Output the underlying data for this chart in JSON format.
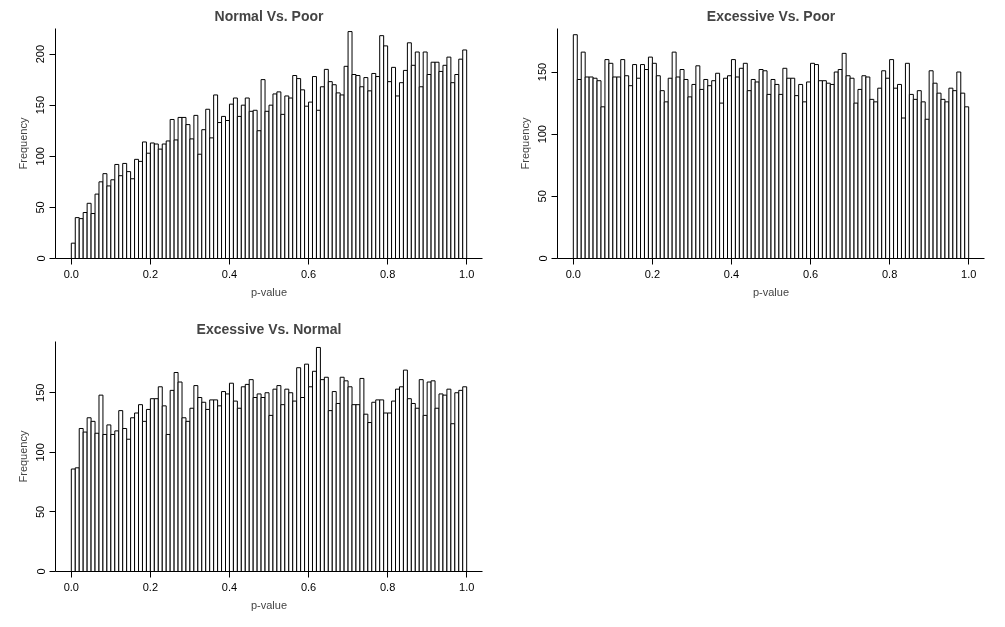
{
  "chart_data": [
    {
      "type": "histogram",
      "title": "Normal Vs. Poor",
      "xlabel": "p-value",
      "ylabel": "Frequency",
      "bins": [
        0,
        0.01,
        0.02,
        0.03,
        0.04,
        0.05,
        0.06,
        0.07,
        0.08,
        0.09,
        0.1,
        0.11,
        0.12,
        0.13,
        0.14,
        0.15,
        0.16,
        0.17,
        0.18,
        0.19,
        0.2,
        0.21,
        0.22,
        0.23,
        0.24,
        0.25,
        0.26,
        0.27,
        0.28,
        0.29,
        0.3,
        0.31,
        0.32,
        0.33,
        0.34,
        0.35,
        0.36,
        0.37,
        0.38,
        0.39,
        0.4,
        0.41,
        0.42,
        0.43,
        0.44,
        0.45,
        0.46,
        0.47,
        0.48,
        0.49,
        0.5,
        0.51,
        0.52,
        0.53,
        0.54,
        0.55,
        0.56,
        0.57,
        0.58,
        0.59,
        0.6,
        0.61,
        0.62,
        0.63,
        0.64,
        0.65,
        0.66,
        0.67,
        0.68,
        0.69,
        0.7,
        0.71,
        0.72,
        0.73,
        0.74,
        0.75,
        0.76,
        0.77,
        0.78,
        0.79,
        0.8,
        0.81,
        0.82,
        0.83,
        0.84,
        0.85,
        0.86,
        0.87,
        0.88,
        0.89,
        0.9,
        0.91,
        0.92,
        0.93,
        0.94,
        0.95,
        0.96,
        0.97,
        0.98,
        0.99,
        1
      ],
      "values": [
        15,
        40,
        39,
        45,
        54,
        44,
        63,
        75,
        83,
        71,
        77,
        92,
        81,
        93,
        85,
        78,
        97,
        95,
        114,
        103,
        113,
        112,
        107,
        112,
        115,
        136,
        116,
        138,
        138,
        131,
        117,
        140,
        102,
        126,
        146,
        118,
        160,
        133,
        139,
        135,
        151,
        157,
        139,
        150,
        157,
        144,
        145,
        125,
        175,
        144,
        150,
        161,
        163,
        141,
        159,
        157,
        179,
        176,
        165,
        149,
        153,
        178,
        145,
        168,
        185,
        173,
        170,
        162,
        160,
        188,
        222,
        180,
        179,
        168,
        177,
        164,
        181,
        178,
        218,
        208,
        173,
        187,
        159,
        172,
        184,
        211,
        189,
        202,
        168,
        202,
        180,
        192,
        192,
        183,
        189,
        197,
        172,
        180,
        195,
        204
      ],
      "color": "#ffffff",
      "xlim": [
        -0.04,
        1.04
      ],
      "ylim": [
        0,
        225
      ],
      "xticks": [
        {
          "value": 0,
          "label": "0.0"
        },
        {
          "value": 0.2,
          "label": "0.2"
        },
        {
          "value": 0.4,
          "label": "0.4"
        },
        {
          "value": 0.6,
          "label": "0.6"
        },
        {
          "value": 0.8,
          "label": "0.8"
        },
        {
          "value": 1,
          "label": "1.0"
        }
      ],
      "yticks": [
        0,
        50,
        100,
        150,
        200
      ]
    },
    {
      "type": "histogram",
      "title": "Excessive Vs. Poor",
      "xlabel": "p-value",
      "ylabel": "Frequency",
      "bins": [
        0,
        0.01,
        0.02,
        0.03,
        0.04,
        0.05,
        0.06,
        0.07,
        0.08,
        0.09,
        0.1,
        0.11,
        0.12,
        0.13,
        0.14,
        0.15,
        0.16,
        0.17,
        0.18,
        0.19,
        0.2,
        0.21,
        0.22,
        0.23,
        0.24,
        0.25,
        0.26,
        0.27,
        0.28,
        0.29,
        0.3,
        0.31,
        0.32,
        0.33,
        0.34,
        0.35,
        0.36,
        0.37,
        0.38,
        0.39,
        0.4,
        0.41,
        0.42,
        0.43,
        0.44,
        0.45,
        0.46,
        0.47,
        0.48,
        0.49,
        0.5,
        0.51,
        0.52,
        0.53,
        0.54,
        0.55,
        0.56,
        0.57,
        0.58,
        0.59,
        0.6,
        0.61,
        0.62,
        0.63,
        0.64,
        0.65,
        0.66,
        0.67,
        0.68,
        0.69,
        0.7,
        0.71,
        0.72,
        0.73,
        0.74,
        0.75,
        0.76,
        0.77,
        0.78,
        0.79,
        0.8,
        0.81,
        0.82,
        0.83,
        0.84,
        0.85,
        0.86,
        0.87,
        0.88,
        0.89,
        0.9,
        0.91,
        0.92,
        0.93,
        0.94,
        0.95,
        0.96,
        0.97,
        0.98,
        0.99,
        1
      ],
      "values": [
        180,
        144,
        166,
        146,
        146,
        145,
        143,
        122,
        160,
        157,
        146,
        146,
        160,
        147,
        139,
        156,
        145,
        156,
        152,
        162,
        157,
        147,
        135,
        126,
        145,
        166,
        146,
        152,
        144,
        130,
        140,
        155,
        136,
        144,
        139,
        143,
        149,
        125,
        145,
        147,
        160,
        146,
        153,
        157,
        135,
        144,
        142,
        152,
        151,
        132,
        144,
        140,
        132,
        153,
        145,
        145,
        131,
        140,
        126,
        142,
        157,
        156,
        143,
        143,
        141,
        140,
        150,
        152,
        165,
        147,
        145,
        125,
        136,
        147,
        146,
        128,
        126,
        137,
        151,
        145,
        160,
        137,
        140,
        113,
        157,
        132,
        128,
        135,
        126,
        112,
        151,
        141,
        133,
        128,
        126,
        137,
        135,
        150,
        133,
        122
      ],
      "color": "#ffffff",
      "xlim": [
        -0.04,
        1.04
      ],
      "ylim": [
        0,
        185
      ],
      "xticks": [
        {
          "value": 0,
          "label": "0.0"
        },
        {
          "value": 0.2,
          "label": "0.2"
        },
        {
          "value": 0.4,
          "label": "0.4"
        },
        {
          "value": 0.6,
          "label": "0.6"
        },
        {
          "value": 0.8,
          "label": "0.8"
        },
        {
          "value": 1,
          "label": "1.0"
        }
      ],
      "yticks": [
        0,
        50,
        100,
        150
      ]
    },
    {
      "type": "histogram",
      "title": "Excessive Vs. Normal",
      "xlabel": "p-value",
      "ylabel": "Frequency",
      "bins": [
        0,
        0.01,
        0.02,
        0.03,
        0.04,
        0.05,
        0.06,
        0.07,
        0.08,
        0.09,
        0.1,
        0.11,
        0.12,
        0.13,
        0.14,
        0.15,
        0.16,
        0.17,
        0.18,
        0.19,
        0.2,
        0.21,
        0.22,
        0.23,
        0.24,
        0.25,
        0.26,
        0.27,
        0.28,
        0.29,
        0.3,
        0.31,
        0.32,
        0.33,
        0.34,
        0.35,
        0.36,
        0.37,
        0.38,
        0.39,
        0.4,
        0.41,
        0.42,
        0.43,
        0.44,
        0.45,
        0.46,
        0.47,
        0.48,
        0.49,
        0.5,
        0.51,
        0.52,
        0.53,
        0.54,
        0.55,
        0.56,
        0.57,
        0.58,
        0.59,
        0.6,
        0.61,
        0.62,
        0.63,
        0.64,
        0.65,
        0.66,
        0.67,
        0.68,
        0.69,
        0.7,
        0.71,
        0.72,
        0.73,
        0.74,
        0.75,
        0.76,
        0.77,
        0.78,
        0.79,
        0.8,
        0.81,
        0.82,
        0.83,
        0.84,
        0.85,
        0.86,
        0.87,
        0.88,
        0.89,
        0.9,
        0.91,
        0.92,
        0.93,
        0.94,
        0.95,
        0.96,
        0.97,
        0.98,
        0.99,
        1
      ],
      "values": [
        86,
        87,
        120,
        117,
        129,
        126,
        116,
        148,
        115,
        123,
        115,
        118,
        135,
        120,
        111,
        129,
        133,
        140,
        126,
        136,
        145,
        145,
        155,
        139,
        115,
        152,
        167,
        159,
        129,
        126,
        137,
        156,
        146,
        142,
        136,
        144,
        144,
        139,
        151,
        149,
        158,
        143,
        137,
        155,
        157,
        161,
        146,
        149,
        146,
        150,
        131,
        153,
        156,
        140,
        153,
        150,
        143,
        171,
        146,
        174,
        155,
        168,
        188,
        161,
        163,
        135,
        151,
        141,
        163,
        160,
        155,
        140,
        140,
        162,
        132,
        125,
        142,
        144,
        144,
        133,
        133,
        143,
        153,
        155,
        169,
        145,
        141,
        137,
        161,
        131,
        159,
        160,
        137,
        149,
        148,
        153,
        124,
        150,
        152,
        155
      ],
      "color": "#ffffff",
      "xlim": [
        -0.04,
        1.04
      ],
      "ylim": [
        0,
        193
      ],
      "xticks": [
        {
          "value": 0,
          "label": "0.0"
        },
        {
          "value": 0.2,
          "label": "0.2"
        },
        {
          "value": 0.4,
          "label": "0.4"
        },
        {
          "value": 0.6,
          "label": "0.6"
        },
        {
          "value": 0.8,
          "label": "0.8"
        },
        {
          "value": 1,
          "label": "1.0"
        }
      ],
      "yticks": [
        0,
        50,
        100,
        150
      ]
    }
  ]
}
